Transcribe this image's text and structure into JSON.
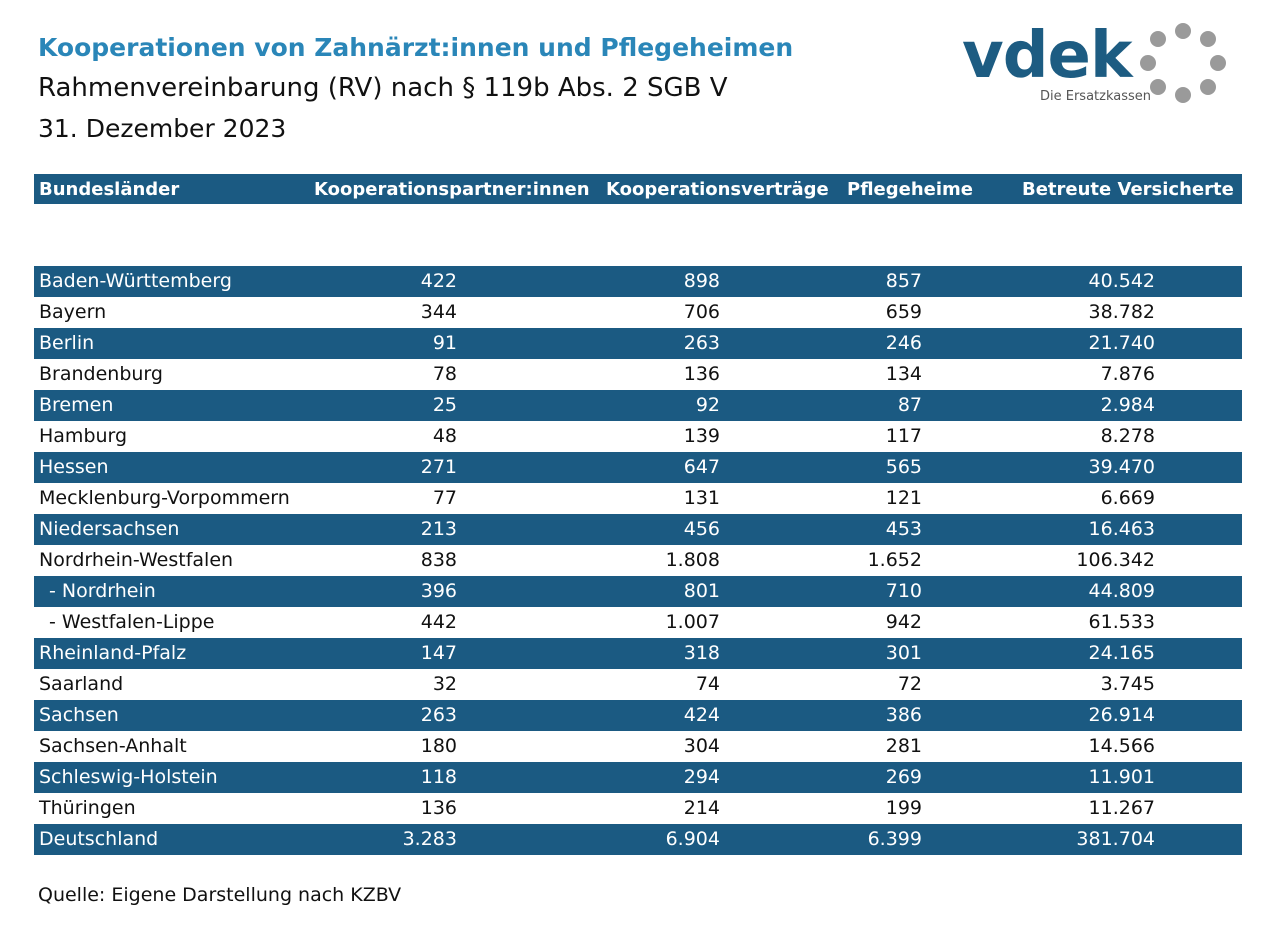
{
  "header": {
    "title": "Kooperationen von Zahnärzt:innen und Pflegeheimen",
    "subtitle": "Rahmenvereinbarung (RV) nach § 119b Abs. 2 SGB V",
    "date": "31. Dezember 2023"
  },
  "logo": {
    "wordmark": "vdek",
    "tagline": "Die Ersatzkassen",
    "color": "#1d5c82",
    "ring_color": "#9a9a9a"
  },
  "table": {
    "columns": [
      "Bundesländer",
      "Kooperationspartner:innen",
      "Kooperationsverträge",
      "Pflegeheime",
      "Betreute Versicherte"
    ],
    "rows": [
      {
        "name": "Baden-Württemberg",
        "partner": "422",
        "vertraege": "898",
        "heime": "857",
        "versicherte": "40.542"
      },
      {
        "name": "Bayern",
        "partner": "344",
        "vertraege": "706",
        "heime": "659",
        "versicherte": "38.782"
      },
      {
        "name": "Berlin",
        "partner": "91",
        "vertraege": "263",
        "heime": "246",
        "versicherte": "21.740"
      },
      {
        "name": "Brandenburg",
        "partner": "78",
        "vertraege": "136",
        "heime": "134",
        "versicherte": "7.876"
      },
      {
        "name": "Bremen",
        "partner": "25",
        "vertraege": "92",
        "heime": "87",
        "versicherte": "2.984"
      },
      {
        "name": "Hamburg",
        "partner": "48",
        "vertraege": "139",
        "heime": "117",
        "versicherte": "8.278"
      },
      {
        "name": "Hessen",
        "partner": "271",
        "vertraege": "647",
        "heime": "565",
        "versicherte": "39.470"
      },
      {
        "name": "Mecklenburg-Vorpommern",
        "partner": "77",
        "vertraege": "131",
        "heime": "121",
        "versicherte": "6.669"
      },
      {
        "name": "Niedersachsen",
        "partner": "213",
        "vertraege": "456",
        "heime": "453",
        "versicherte": "16.463"
      },
      {
        "name": "Nordrhein-Westfalen",
        "partner": "838",
        "vertraege": "1.808",
        "heime": "1.652",
        "versicherte": "106.342"
      },
      {
        "name": " - Nordrhein",
        "partner": "396",
        "vertraege": "801",
        "heime": "710",
        "versicherte": "44.809"
      },
      {
        "name": " - Westfalen-Lippe",
        "partner": "442",
        "vertraege": "1.007",
        "heime": "942",
        "versicherte": "61.533"
      },
      {
        "name": "Rheinland-Pfalz",
        "partner": "147",
        "vertraege": "318",
        "heime": "301",
        "versicherte": "24.165"
      },
      {
        "name": "Saarland",
        "partner": "32",
        "vertraege": "74",
        "heime": "72",
        "versicherte": "3.745"
      },
      {
        "name": "Sachsen",
        "partner": "263",
        "vertraege": "424",
        "heime": "386",
        "versicherte": "26.914"
      },
      {
        "name": "Sachsen-Anhalt",
        "partner": "180",
        "vertraege": "304",
        "heime": "281",
        "versicherte": "14.566"
      },
      {
        "name": "Schleswig-Holstein",
        "partner": "118",
        "vertraege": "294",
        "heime": "269",
        "versicherte": "11.901"
      },
      {
        "name": "Thüringen",
        "partner": "136",
        "vertraege": "214",
        "heime": "199",
        "versicherte": "11.267"
      },
      {
        "name": "Deutschland",
        "partner": "3.283",
        "vertraege": "6.904",
        "heime": "6.399",
        "versicherte": "381.704"
      }
    ]
  },
  "colors": {
    "title_blue": "#2a86b8",
    "row_dark": "#1b5a82"
  },
  "footer": {
    "source": "Quelle: Eigene Darstellung nach KZBV"
  }
}
